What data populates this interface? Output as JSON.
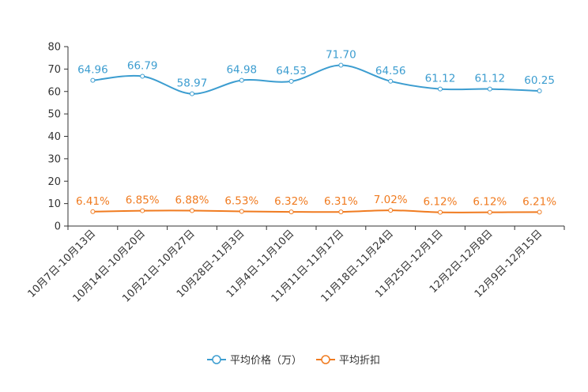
{
  "chart_data": {
    "type": "line",
    "title": "",
    "xlabel": "",
    "ylabel": "",
    "ylim": [
      0,
      80
    ],
    "yticks": [
      0,
      10,
      20,
      30,
      40,
      50,
      60,
      70,
      80
    ],
    "categories": [
      "10月7日-10月13日",
      "10月14日-10月20日",
      "10月21日-10月27日",
      "10月28日-11月3日",
      "11月4日-11月10日",
      "11月11日-11月17日",
      "11月18日-11月24日",
      "11月25日-12月1日",
      "12月2日-12月8日",
      "12月9日-12月15日"
    ],
    "series": [
      {
        "name": "平均价格（万）",
        "color": "#3c9dd0",
        "values": [
          64.96,
          66.79,
          58.97,
          64.98,
          64.53,
          71.7,
          64.56,
          61.12,
          61.12,
          60.25
        ],
        "labels": [
          "64.96",
          "66.79",
          "58.97",
          "64.98",
          "64.53",
          "71.70",
          "64.56",
          "61.12",
          "61.12",
          "60.25"
        ]
      },
      {
        "name": "平均折扣",
        "color": "#f07b20",
        "values": [
          6.41,
          6.85,
          6.88,
          6.53,
          6.32,
          6.31,
          7.02,
          6.12,
          6.12,
          6.21
        ],
        "labels": [
          "6.41%",
          "6.85%",
          "6.88%",
          "6.53%",
          "6.32%",
          "6.31%",
          "7.02%",
          "6.12%",
          "6.12%",
          "6.21%"
        ]
      }
    ],
    "grid": false,
    "legend": "bottom-center"
  }
}
